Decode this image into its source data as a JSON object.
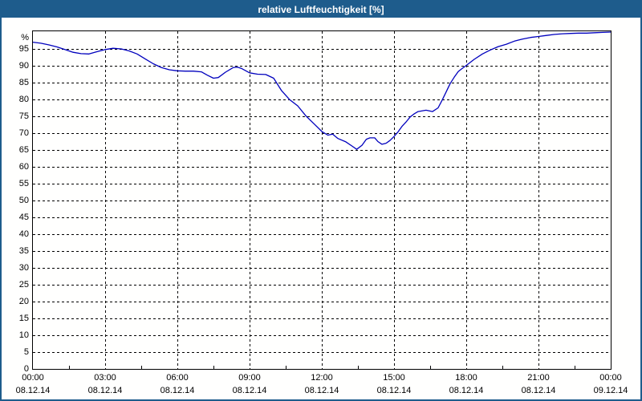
{
  "window": {
    "title": "relative Luftfeuchtigkeit [%]"
  },
  "colors": {
    "titlebar_bg": "#1e5c8c",
    "window_border": "#1e5c8c",
    "plot_border": "#000000",
    "grid": "#000000",
    "line": "#0000bd",
    "plot_bg": "#fffffe",
    "title_text": "#ffffff",
    "axis_text": "#000000"
  },
  "chart_data": {
    "type": "line",
    "title": "relative Luftfeuchtigkeit [%]",
    "ylabel": "%",
    "y_unit_label": "%",
    "ylim": [
      0,
      100.25
    ],
    "xlim_hours": [
      0,
      24
    ],
    "grid": "dashed",
    "legend": "none",
    "y_ticks": [
      0,
      5,
      10,
      15,
      20,
      25,
      30,
      35,
      40,
      45,
      50,
      55,
      60,
      65,
      70,
      75,
      80,
      85,
      90,
      95
    ],
    "x_ticks": [
      {
        "hour": 0,
        "time": "00:00",
        "date": "08.12.14"
      },
      {
        "hour": 3,
        "time": "03:00",
        "date": "08.12.14"
      },
      {
        "hour": 6,
        "time": "06:00",
        "date": "08.12.14"
      },
      {
        "hour": 9,
        "time": "09:00",
        "date": "08.12.14"
      },
      {
        "hour": 12,
        "time": "12:00",
        "date": "08.12.14"
      },
      {
        "hour": 15,
        "time": "15:00",
        "date": "08.12.14"
      },
      {
        "hour": 18,
        "time": "18:00",
        "date": "08.12.14"
      },
      {
        "hour": 21,
        "time": "21:00",
        "date": "08.12.14"
      },
      {
        "hour": 24,
        "time": "00:00",
        "date": "09.12.14"
      }
    ],
    "series": [
      {
        "name": "relative Luftfeuchtigkeit",
        "unit": "%",
        "color": "#0000bd",
        "points": [
          [
            0,
            97
          ],
          [
            0.33,
            96.7
          ],
          [
            0.67,
            96.2
          ],
          [
            1,
            95.6
          ],
          [
            1.33,
            94.8
          ],
          [
            1.67,
            94
          ],
          [
            2,
            93.6
          ],
          [
            2.33,
            93.5
          ],
          [
            2.67,
            94.2
          ],
          [
            3,
            94.8
          ],
          [
            3.33,
            95.2
          ],
          [
            3.67,
            95
          ],
          [
            4,
            94.4
          ],
          [
            4.33,
            93.5
          ],
          [
            4.67,
            92
          ],
          [
            5,
            90.6
          ],
          [
            5.33,
            89.5
          ],
          [
            5.67,
            88.8
          ],
          [
            6,
            88.5
          ],
          [
            6.33,
            88.4
          ],
          [
            6.67,
            88.4
          ],
          [
            7,
            88.2
          ],
          [
            7.25,
            87.2
          ],
          [
            7.5,
            86.3
          ],
          [
            7.7,
            86.5
          ],
          [
            8,
            88.1
          ],
          [
            8.33,
            89.5
          ],
          [
            8.5,
            89.6
          ],
          [
            8.67,
            89.2
          ],
          [
            9,
            87.9
          ],
          [
            9.33,
            87.5
          ],
          [
            9.67,
            87.4
          ],
          [
            10,
            86.3
          ],
          [
            10.33,
            82.6
          ],
          [
            10.67,
            79.9
          ],
          [
            11,
            78.1
          ],
          [
            11.33,
            75.2
          ],
          [
            11.67,
            72.8
          ],
          [
            12,
            70.5
          ],
          [
            12.25,
            69.4
          ],
          [
            12.45,
            69.7
          ],
          [
            12.67,
            68.4
          ],
          [
            13,
            67.4
          ],
          [
            13.25,
            66.2
          ],
          [
            13.45,
            65.2
          ],
          [
            13.67,
            66.4
          ],
          [
            13.85,
            68.2
          ],
          [
            14,
            68.6
          ],
          [
            14.2,
            68.6
          ],
          [
            14.33,
            67.5
          ],
          [
            14.5,
            66.7
          ],
          [
            14.67,
            67
          ],
          [
            14.83,
            67.8
          ],
          [
            15,
            69
          ],
          [
            15.17,
            70.4
          ],
          [
            15.33,
            72
          ],
          [
            15.5,
            73.3
          ],
          [
            15.67,
            74.8
          ],
          [
            15.83,
            75.7
          ],
          [
            16,
            76.4
          ],
          [
            16.33,
            76.8
          ],
          [
            16.6,
            76.4
          ],
          [
            16.83,
            77.5
          ],
          [
            17,
            79.8
          ],
          [
            17.17,
            82.3
          ],
          [
            17.33,
            84.7
          ],
          [
            17.5,
            86.6
          ],
          [
            17.67,
            88.3
          ],
          [
            17.83,
            89.2
          ],
          [
            18,
            90.1
          ],
          [
            18.33,
            91.9
          ],
          [
            18.67,
            93.5
          ],
          [
            19,
            94.7
          ],
          [
            19.33,
            95.7
          ],
          [
            19.67,
            96.4
          ],
          [
            20,
            97.3
          ],
          [
            20.33,
            97.9
          ],
          [
            20.67,
            98.4
          ],
          [
            21,
            98.7
          ],
          [
            21.33,
            99
          ],
          [
            21.67,
            99.3
          ],
          [
            22,
            99.5
          ],
          [
            22.33,
            99.6
          ],
          [
            22.67,
            99.7
          ],
          [
            23,
            99.7
          ],
          [
            23.33,
            99.8
          ],
          [
            23.67,
            99.9
          ],
          [
            24,
            100
          ]
        ]
      }
    ]
  }
}
